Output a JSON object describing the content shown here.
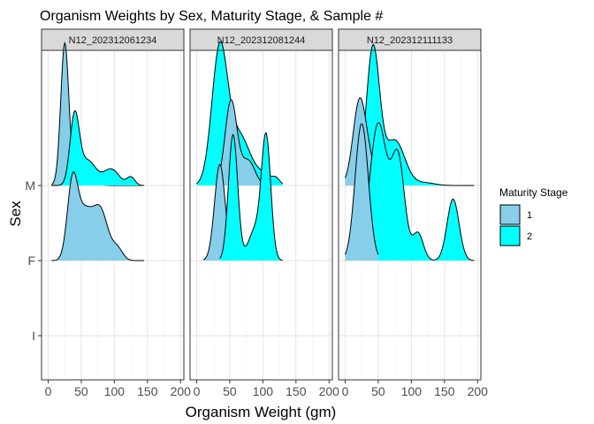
{
  "chart_data": {
    "type": "ridgeline-density",
    "title": "Organism Weights by Sex, Maturity Stage, & Sample #",
    "xlabel": "Organism Weight (gm)",
    "ylabel": "Sex",
    "xlim": [
      -10,
      205
    ],
    "xticks": [
      0,
      50,
      100,
      150,
      200
    ],
    "sex_levels": [
      "I",
      "F",
      "M"
    ],
    "grid": "on",
    "legend": {
      "title": "Maturity Stage",
      "position": "right",
      "entries": [
        {
          "label": "1",
          "color": "#87ceeb"
        },
        {
          "label": "2",
          "color": "#00ffff"
        }
      ]
    },
    "panels": [
      {
        "label": "N12_202312061234",
        "groups": [
          {
            "sex": "M",
            "stage": "1",
            "range": [
              5,
              140
            ],
            "components": [
              [
                25,
                6,
                1.0
              ],
              [
                45,
                15,
                0.1
              ]
            ]
          },
          {
            "sex": "M",
            "stage": "2",
            "range": [
              5,
              145
            ],
            "components": [
              [
                40,
                7,
                0.5
              ],
              [
                60,
                12,
                0.18
              ],
              [
                95,
                12,
                0.12
              ],
              [
                125,
                6,
                0.06
              ]
            ]
          },
          {
            "sex": "F",
            "stage": "1",
            "range": [
              5,
              145
            ],
            "components": [
              [
                37,
                8,
                0.58
              ],
              [
                55,
                10,
                0.3
              ],
              [
                78,
                12,
                0.38
              ],
              [
                105,
                8,
                0.08
              ]
            ]
          }
        ]
      },
      {
        "label": "N12_202312081244",
        "groups": [
          {
            "sex": "M",
            "stage": "2",
            "range": [
              0,
              130
            ],
            "components": [
              [
                35,
                12,
                1.0
              ],
              [
                65,
                15,
                0.35
              ],
              [
                100,
                15,
                0.08
              ],
              [
                120,
                5,
                0.03
              ]
            ]
          },
          {
            "sex": "M",
            "stage": "1",
            "range": [
              35,
              100
            ],
            "components": [
              [
                52,
                9,
                0.62
              ],
              [
                78,
                10,
                0.18
              ]
            ]
          },
          {
            "sex": "F",
            "stage": "1",
            "range": [
              10,
              100
            ],
            "components": [
              [
                35,
                8,
                0.7
              ],
              [
                65,
                10,
                0.08
              ],
              [
                85,
                8,
                0.1
              ]
            ]
          },
          {
            "sex": "F",
            "stage": "2",
            "range": [
              35,
              130
            ],
            "components": [
              [
                55,
                7,
                0.92
              ],
              [
                88,
                10,
                0.22
              ],
              [
                105,
                7,
                0.88
              ]
            ]
          }
        ]
      },
      {
        "label": "N12_202312111133",
        "groups": [
          {
            "sex": "M",
            "stage": "2",
            "range": [
              10,
              195
            ],
            "components": [
              [
                42,
                10,
                1.0
              ],
              [
                75,
                15,
                0.33
              ],
              [
                120,
                15,
                0.02
              ]
            ]
          },
          {
            "sex": "M",
            "stage": "1",
            "range": [
              0,
              60
            ],
            "components": [
              [
                22,
                10,
                0.62
              ],
              [
                40,
                10,
                0.1
              ]
            ]
          },
          {
            "sex": "F",
            "stage": "2",
            "range": [
              20,
              195
            ],
            "components": [
              [
                50,
                13,
                1.0
              ],
              [
                80,
                10,
                0.73
              ],
              [
                110,
                8,
                0.2
              ],
              [
                163,
                9,
                0.45
              ]
            ]
          },
          {
            "sex": "F",
            "stage": "1",
            "range": [
              0,
              50
            ],
            "components": [
              [
                25,
                10,
                1.0
              ]
            ]
          }
        ]
      }
    ]
  }
}
